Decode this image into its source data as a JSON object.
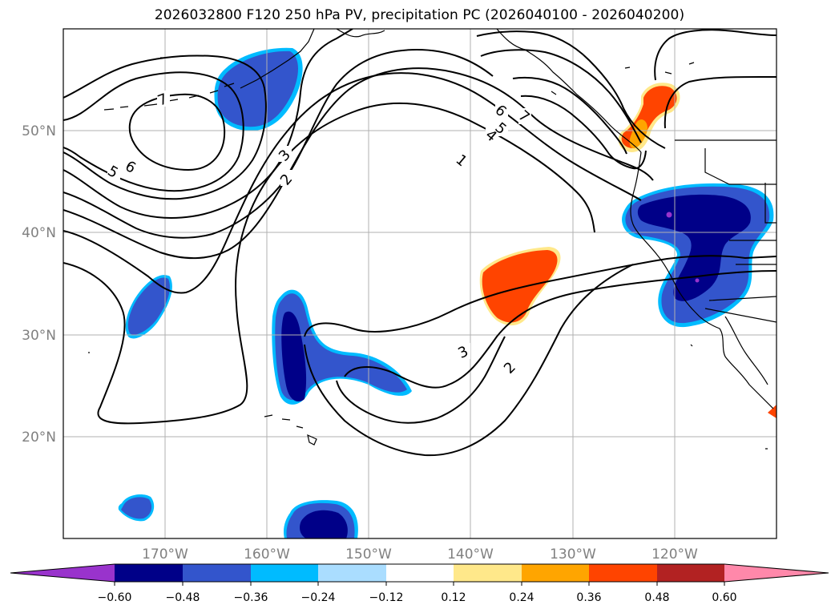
{
  "title": "2026032800 F120 250 hPa PV, precipitation PC (2026040100 - 2026040200)",
  "map": {
    "lon_ticks": [
      "170°W",
      "160°W",
      "150°W",
      "140°W",
      "130°W",
      "120°W"
    ],
    "lat_ticks": [
      "50°N",
      "40°N",
      "30°N",
      "20°N"
    ],
    "contour_labels": [
      "7",
      "6",
      "5",
      "3",
      "2",
      "1",
      "6",
      "5",
      "4",
      "7",
      "3",
      "2"
    ]
  },
  "colorbar": {
    "ticks": [
      "−0.60",
      "−0.48",
      "−0.36",
      "−0.24",
      "−0.12",
      "0.12",
      "0.24",
      "0.36",
      "0.48",
      "0.60"
    ],
    "colors": [
      "#9933cc",
      "#000088",
      "#3355cc",
      "#00bbff",
      "#aaddff",
      "#ffffff",
      "#ffe88a",
      "#ffa500",
      "#ff4400",
      "#b22222",
      "#ff88aa"
    ]
  }
}
